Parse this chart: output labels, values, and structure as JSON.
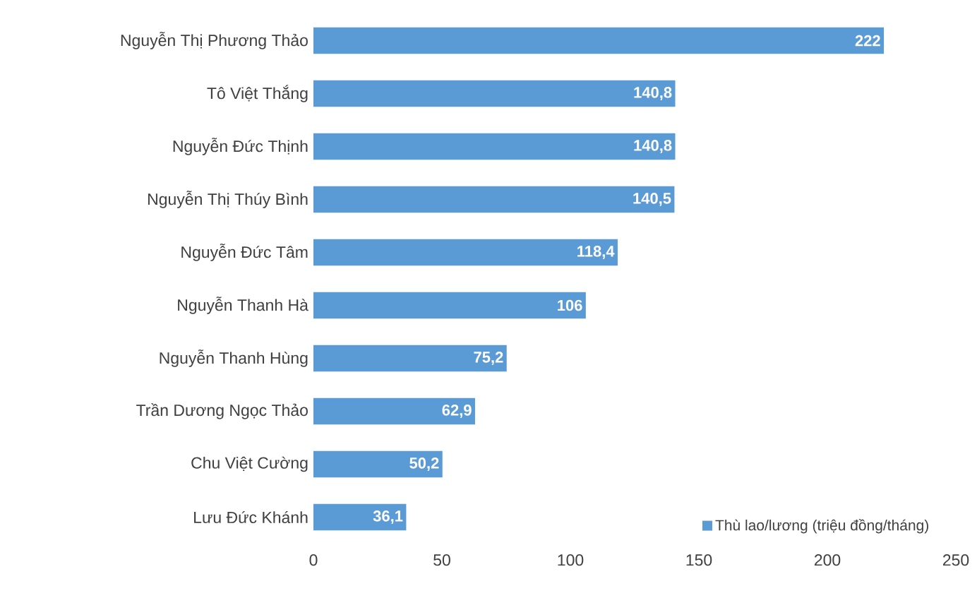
{
  "chart_data": {
    "type": "bar",
    "orientation": "horizontal",
    "categories": [
      "Nguyễn Thị Phương Thảo",
      "Tô Việt Thắng",
      "Nguyễn Đức Thịnh",
      "Nguyễn Thị Thúy Bình",
      "Nguyễn Đức Tâm",
      "Nguyễn Thanh Hà",
      "Nguyễn Thanh Hùng",
      "Trần Dương Ngọc Thảo",
      "Chu Việt Cường",
      "Lưu Đức Khánh"
    ],
    "series": [
      {
        "name": "Thù lao/lương (triệu đồng/tháng)",
        "color": "#5b9bd5",
        "values": [
          222,
          140.8,
          140.8,
          140.5,
          118.4,
          106,
          75.2,
          62.9,
          50.2,
          36.1
        ],
        "value_labels": [
          "222",
          "140,8",
          "140,8",
          "140,5",
          "118,4",
          "106",
          "75,2",
          "62,9",
          "50,2",
          "36,1"
        ]
      }
    ],
    "xlim": [
      0,
      250
    ],
    "xticks": [
      0,
      50,
      100,
      150,
      200,
      250
    ],
    "legend": "bottom right"
  }
}
